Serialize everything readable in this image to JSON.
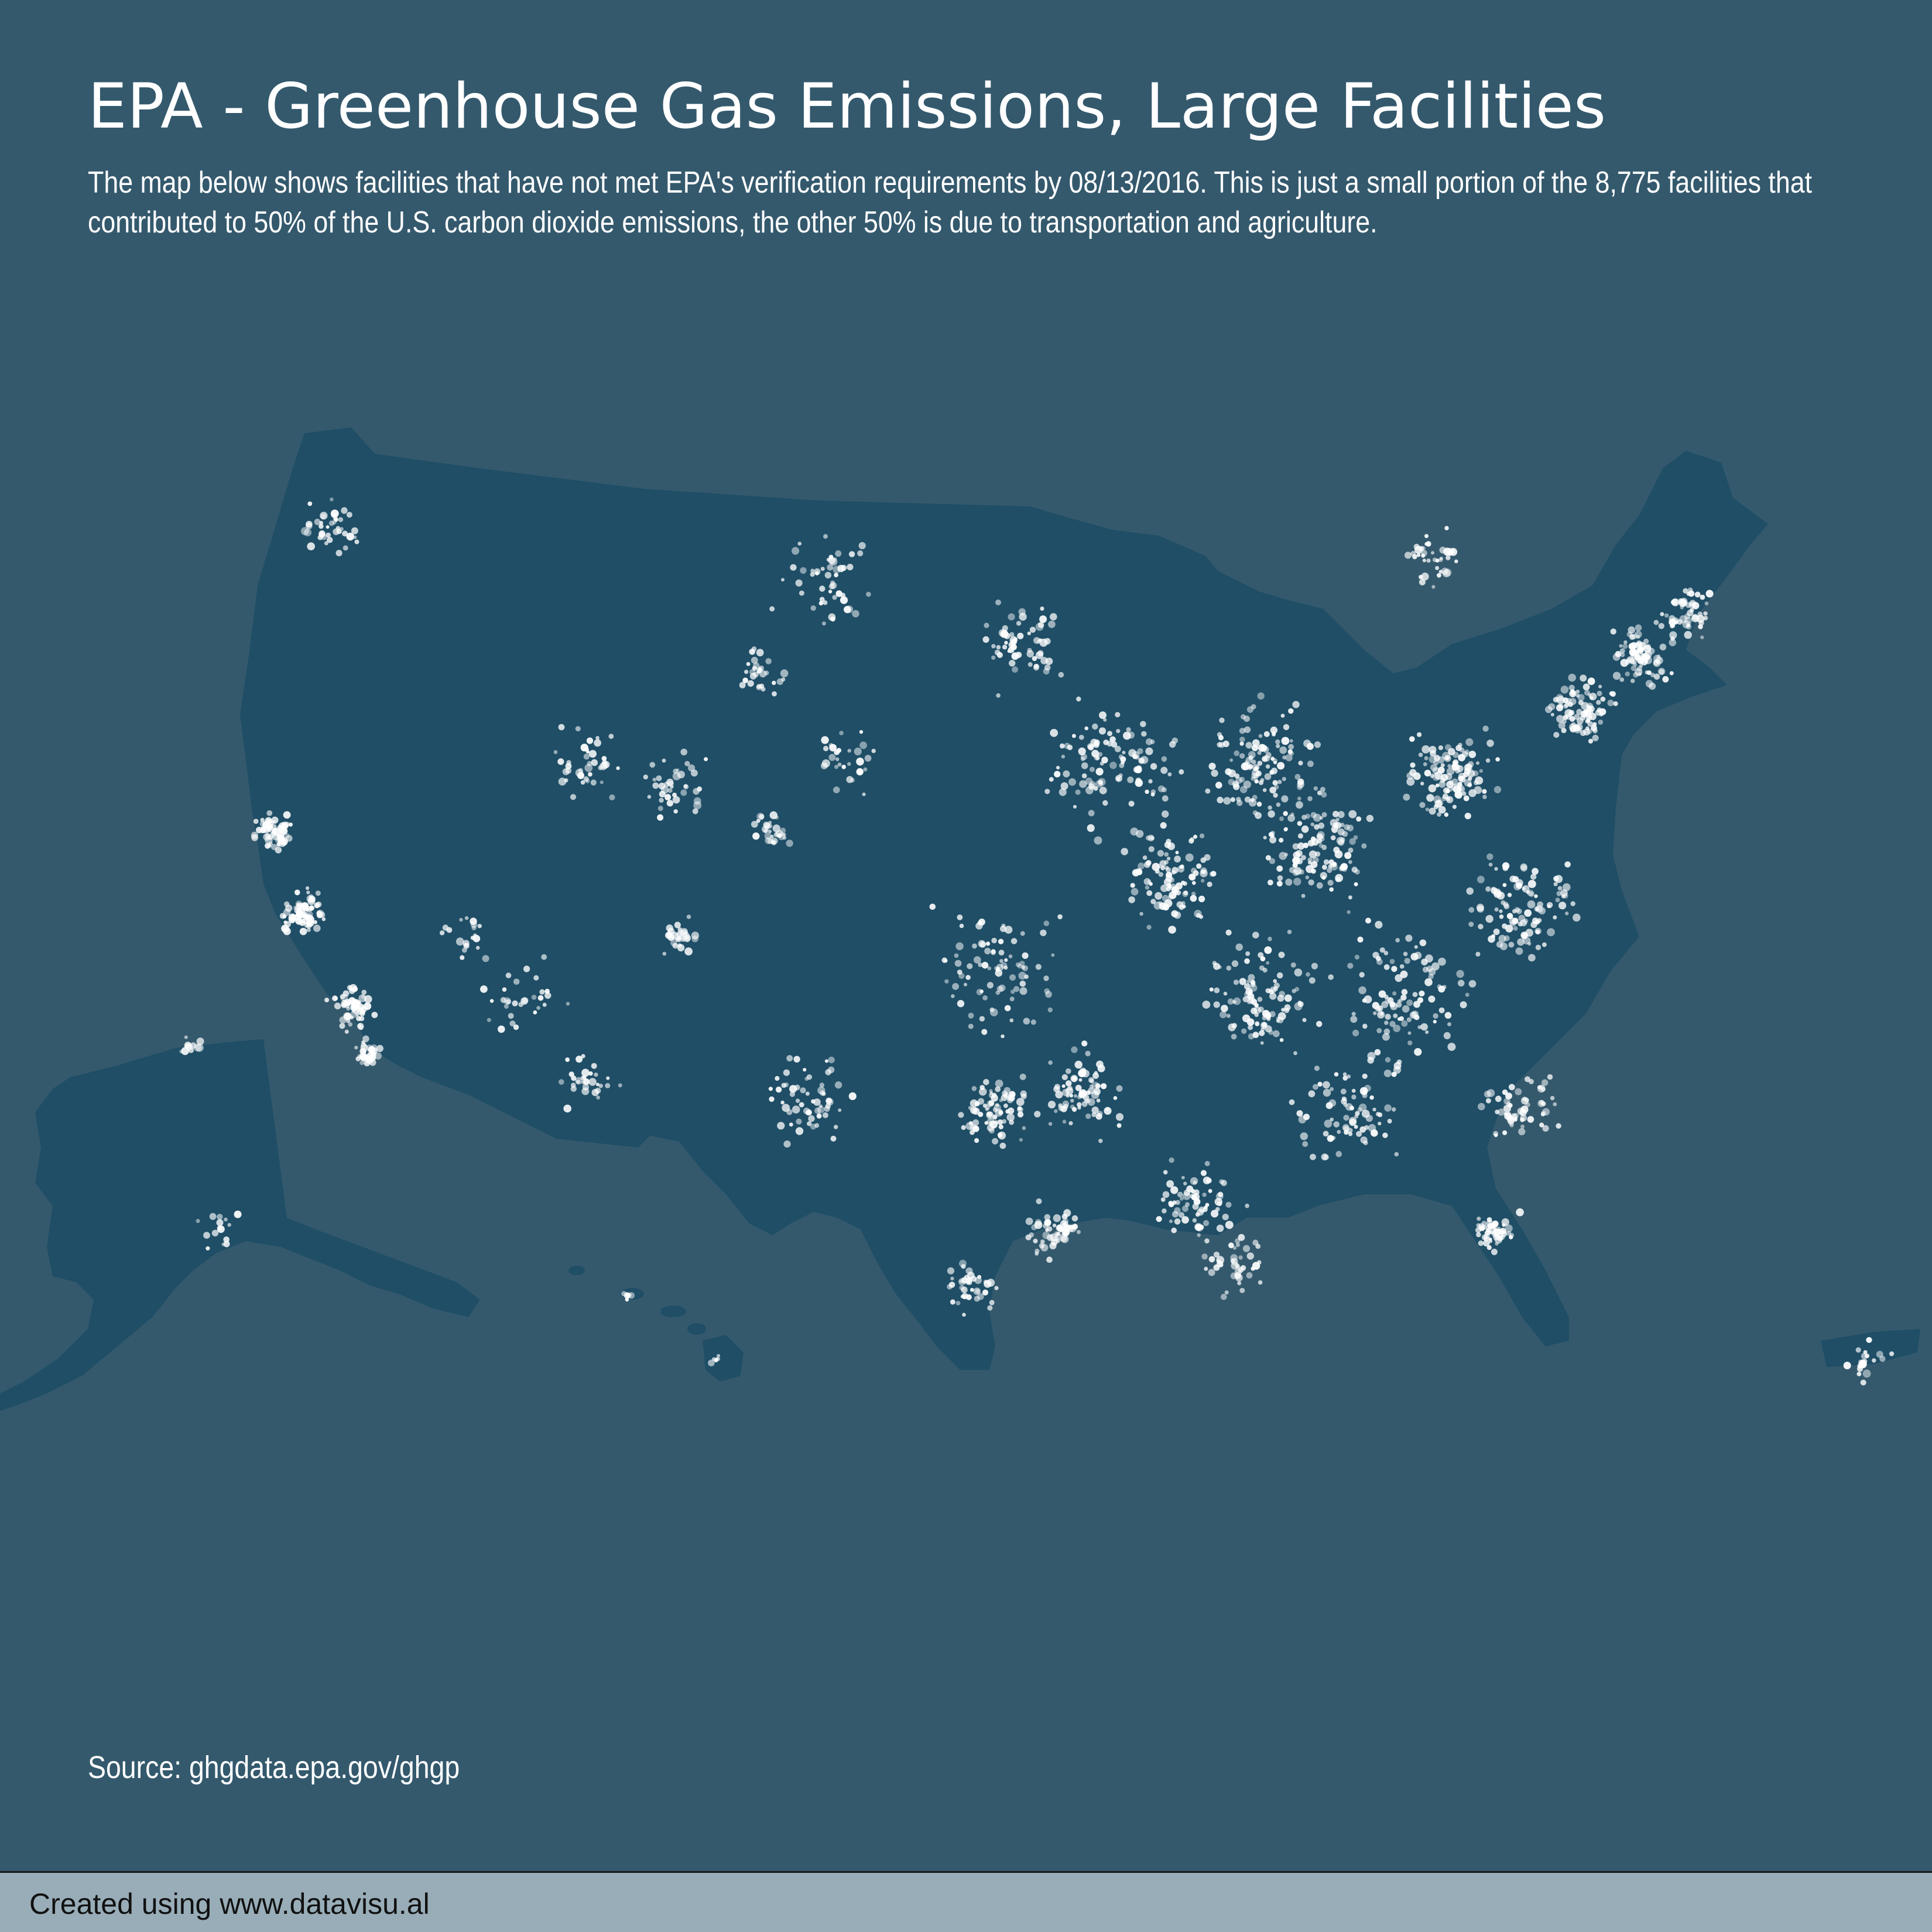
{
  "header": {
    "title": "EPA - Greenhouse Gas Emissions, Large Facilities",
    "description": "The map below shows facilities that have not met EPA's verification requirements by 08/13/2016. This is just a small portion of the 8,775 facilities that contributed to 50% of the U.S. carbon dioxide emissions, the other 50% is due to transportation and agriculture."
  },
  "source": "Source: ghgdata.epa.gov/ghgp",
  "footer": {
    "credit": "Created using www.datavisu.al"
  },
  "colors": {
    "background": "#34596d",
    "land": "#1f4e66",
    "facility_dot": "#ffffff",
    "footer_bar": "#98adb8"
  },
  "map": {
    "regions": [
      "Contiguous United States",
      "Alaska",
      "Hawaii",
      "Puerto Rico"
    ],
    "marker": "facility dot"
  }
}
